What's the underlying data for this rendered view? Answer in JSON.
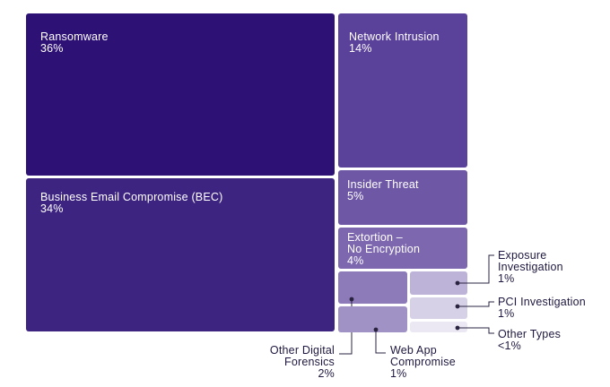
{
  "chart_data": {
    "type": "treemap",
    "title": "",
    "series": [
      {
        "name": "Ransomware",
        "pct_label": "36%",
        "value": 36,
        "color": "#2d1175"
      },
      {
        "name": "Business Email Compromise (BEC)",
        "pct_label": "34%",
        "value": 34,
        "color": "#3c2480"
      },
      {
        "name": "Network Intrusion",
        "pct_label": "14%",
        "value": 14,
        "color": "#5a4199"
      },
      {
        "name": "Insider Threat",
        "pct_label": "5%",
        "value": 5,
        "color": "#6e58a6"
      },
      {
        "name": "Extortion –\nNo Encryption",
        "pct_label": "4%",
        "value": 4,
        "color": "#7d68b0"
      },
      {
        "name": "Other Digital\nForensics",
        "pct_label": "2%",
        "value": 2,
        "color": "#8c7ab9"
      },
      {
        "name": "Web App\nCompromise",
        "pct_label": "1%",
        "value": 1,
        "color": "#a092c4"
      },
      {
        "name": "Exposure\nInvestigation",
        "pct_label": "1%",
        "value": 1,
        "color": "#bdb3d8"
      },
      {
        "name": "PCI Investigation",
        "pct_label": "1%",
        "value": 1,
        "color": "#d7d1e7"
      },
      {
        "name": "Other Types",
        "pct_label": "<1%",
        "value": 0.5,
        "color": "#ebe8f3"
      }
    ]
  }
}
